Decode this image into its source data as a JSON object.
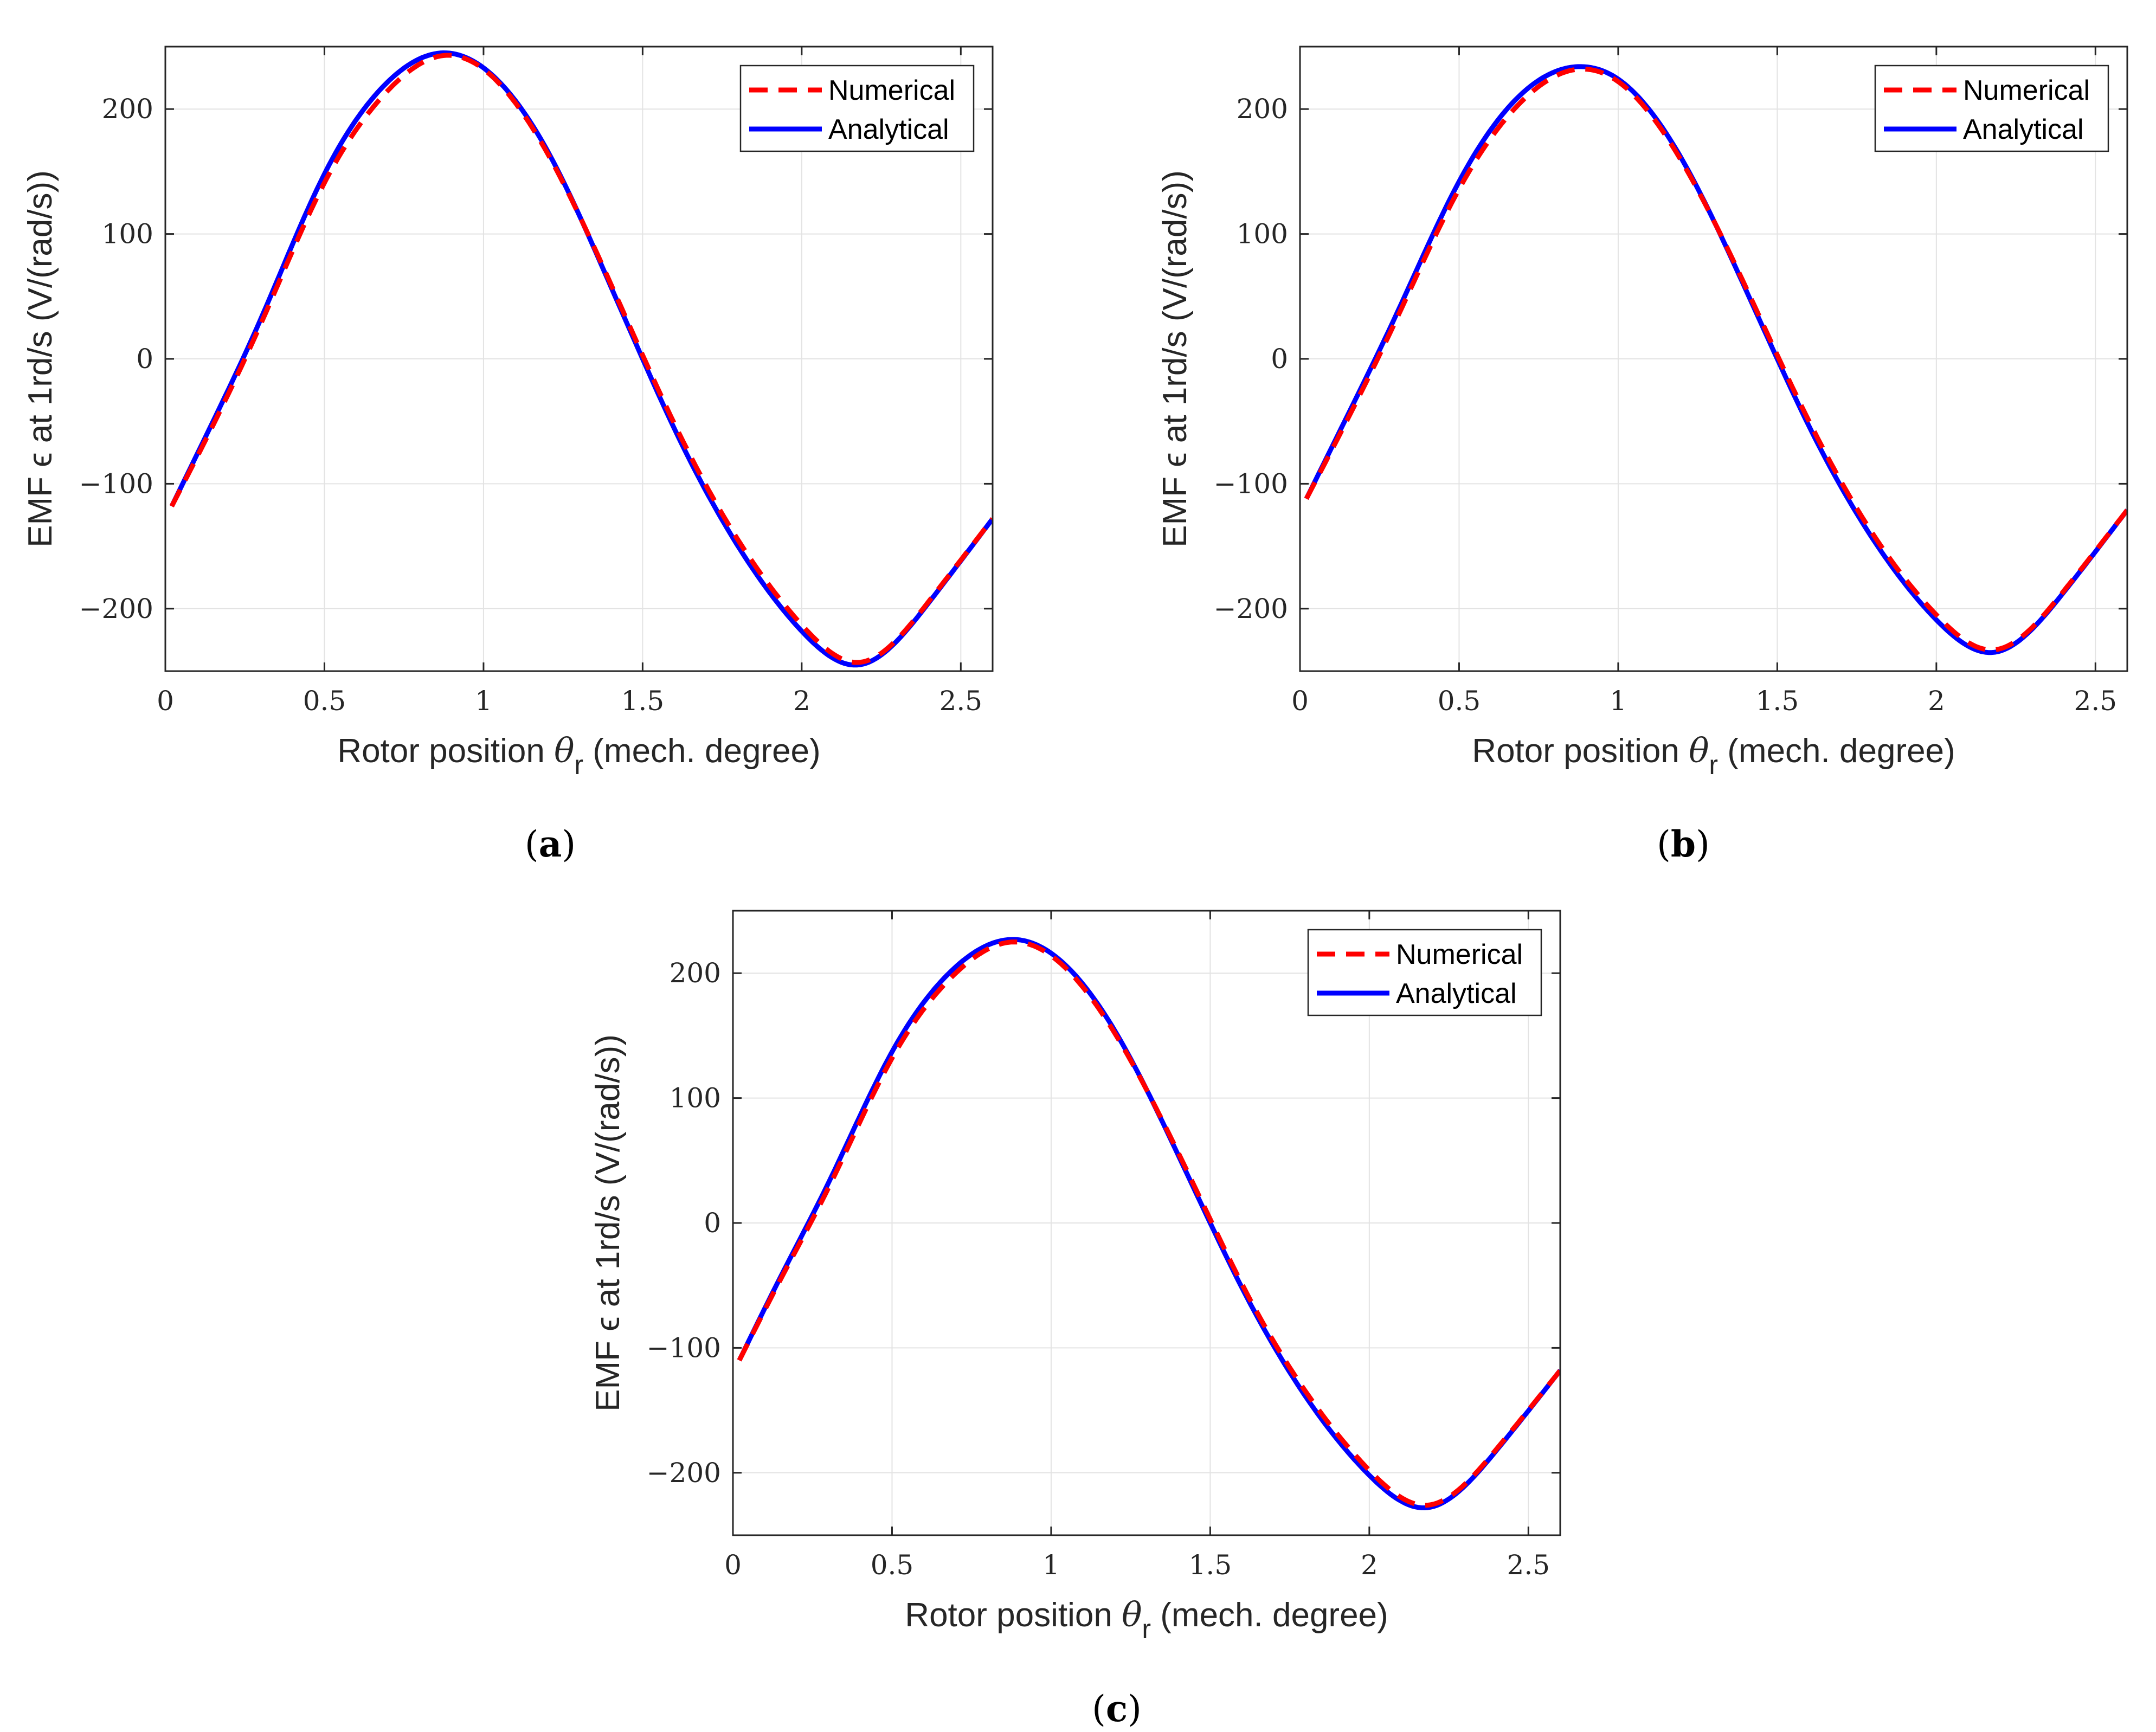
{
  "figure": {
    "panels": [
      {
        "caption_open": "(",
        "caption_letter": "a",
        "caption_close": ")"
      },
      {
        "caption_open": "(",
        "caption_letter": "b",
        "caption_close": ")"
      },
      {
        "caption_open": "(",
        "caption_letter": "c",
        "caption_close": ")"
      }
    ]
  },
  "chart_data": [
    {
      "type": "line",
      "panel": "a",
      "xlabel": "Rotor position θ_r (mech. degree)",
      "xlabel_main": "Rotor position",
      "xlabel_symbol": "θ",
      "xlabel_sub": "r",
      "xlabel_unit": "(mech. degree)",
      "ylabel": "EMF ϵ at 1rd/s (V/(rad/s))",
      "xlim": [
        0,
        2.6
      ],
      "ylim": [
        -250,
        250
      ],
      "xticks": [
        0,
        0.5,
        1,
        1.5,
        2,
        2.5
      ],
      "xtick_labels": [
        "0",
        "0.5",
        "1",
        "1.5",
        "2",
        "2.5"
      ],
      "yticks": [
        -200,
        -100,
        0,
        100,
        200
      ],
      "ytick_labels": [
        "−200",
        "−100",
        "0",
        "100",
        "200"
      ],
      "grid": true,
      "legend_position": "top-right",
      "x": [
        0.02,
        0.15,
        0.3,
        0.5,
        0.7,
        0.88,
        1.0,
        1.2,
        1.4,
        1.5,
        1.6,
        1.8,
        2.0,
        2.18,
        2.4,
        2.6
      ],
      "series": [
        {
          "name": "Numerical",
          "color": "#ff0000",
          "style": "dashed",
          "values": [
            -118,
            -53,
            28,
            141,
            215,
            243,
            232,
            165,
            60,
            3,
            -52,
            -145,
            -213,
            -243,
            -194,
            -128
          ]
        },
        {
          "name": "Analytical",
          "color": "#0000ff",
          "style": "solid",
          "values": [
            -118,
            -50,
            32,
            148,
            222,
            245,
            233,
            167,
            58,
            0,
            -56,
            -150,
            -218,
            -245,
            -195,
            -128
          ]
        }
      ]
    },
    {
      "type": "line",
      "panel": "b",
      "xlabel": "Rotor position θ_r (mech. degree)",
      "xlabel_main": "Rotor position",
      "xlabel_symbol": "θ",
      "xlabel_sub": "r",
      "xlabel_unit": "(mech. degree)",
      "ylabel": "EMF ϵ at 1rd/s (V/(rad/s))",
      "xlim": [
        0,
        2.6
      ],
      "ylim": [
        -250,
        250
      ],
      "xticks": [
        0,
        0.5,
        1,
        1.5,
        2,
        2.5
      ],
      "xtick_labels": [
        "0",
        "0.5",
        "1",
        "1.5",
        "2",
        "2.5"
      ],
      "yticks": [
        -200,
        -100,
        0,
        100,
        200
      ],
      "ytick_labels": [
        "−200",
        "−100",
        "0",
        "100",
        "200"
      ],
      "grid": true,
      "legend_position": "top-right",
      "x": [
        0.02,
        0.15,
        0.3,
        0.5,
        0.7,
        0.88,
        1.0,
        1.2,
        1.4,
        1.5,
        1.6,
        1.8,
        2.0,
        2.18,
        2.4,
        2.6
      ],
      "series": [
        {
          "name": "Numerical",
          "color": "#ff0000",
          "style": "dashed",
          "values": [
            -112,
            -48,
            30,
            136,
            207,
            232,
            222,
            158,
            58,
            3,
            -50,
            -140,
            -205,
            -233,
            -186,
            -121
          ]
        },
        {
          "name": "Analytical",
          "color": "#0000ff",
          "style": "solid",
          "values": [
            -112,
            -45,
            34,
            142,
            213,
            234,
            224,
            160,
            56,
            0,
            -54,
            -144,
            -209,
            -235,
            -187,
            -121
          ]
        }
      ]
    },
    {
      "type": "line",
      "panel": "c",
      "xlabel": "Rotor position θ_r (mech. degree)",
      "xlabel_main": "Rotor position",
      "xlabel_symbol": "θ",
      "xlabel_sub": "r",
      "xlabel_unit": "(mech. degree)",
      "ylabel": "EMF ϵ at 1rd/s (V/(rad/s))",
      "xlim": [
        0,
        2.6
      ],
      "ylim": [
        -250,
        250
      ],
      "xticks": [
        0,
        0.5,
        1,
        1.5,
        2,
        2.5
      ],
      "xtick_labels": [
        "0",
        "0.5",
        "1",
        "1.5",
        "2",
        "2.5"
      ],
      "yticks": [
        -200,
        -100,
        0,
        100,
        200
      ],
      "ytick_labels": [
        "−200",
        "−100",
        "0",
        "100",
        "200"
      ],
      "grid": true,
      "legend_position": "top-right",
      "x": [
        0.02,
        0.15,
        0.3,
        0.5,
        0.7,
        0.88,
        1.0,
        1.2,
        1.4,
        1.5,
        1.6,
        1.8,
        2.0,
        2.18,
        2.4,
        2.6
      ],
      "series": [
        {
          "name": "Numerical",
          "color": "#ff0000",
          "style": "dashed",
          "values": [
            -110,
            -45,
            28,
            132,
            200,
            225,
            214,
            152,
            56,
            3,
            -49,
            -135,
            -198,
            -226,
            -181,
            -118
          ]
        },
        {
          "name": "Analytical",
          "color": "#0000ff",
          "style": "solid",
          "values": [
            -110,
            -43,
            32,
            137,
            205,
            227,
            216,
            154,
            54,
            0,
            -52,
            -139,
            -202,
            -228,
            -182,
            -118
          ]
        }
      ]
    }
  ]
}
